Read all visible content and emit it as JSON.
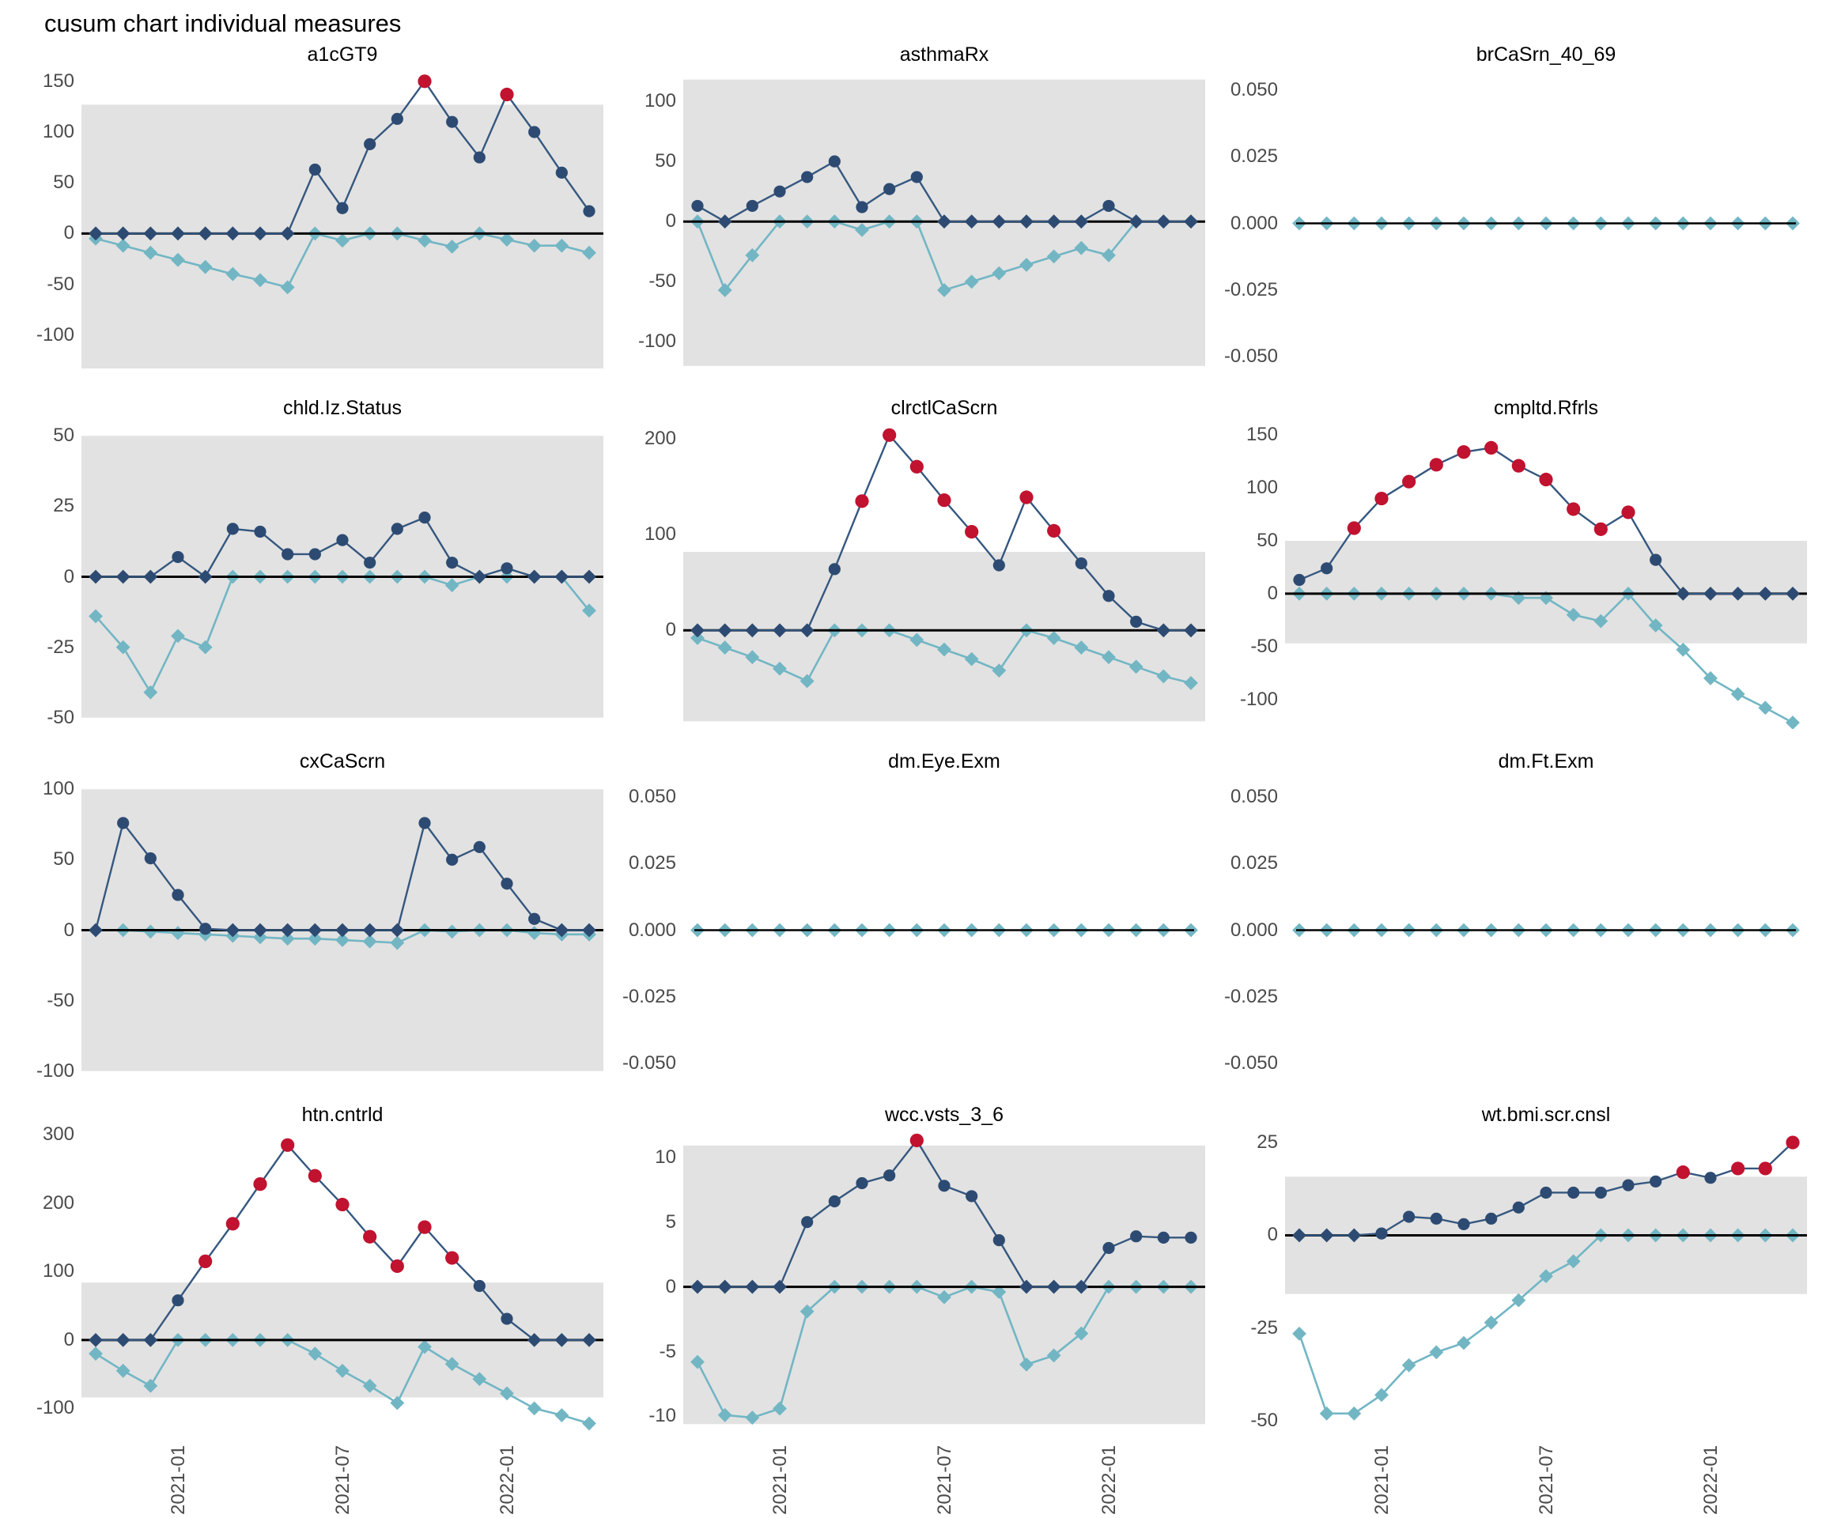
{
  "page_title": "cusum chart  individual measures",
  "colors": {
    "upper_point": "#2d4b72",
    "upper_line": "#35577f",
    "lower": "#72b6c4",
    "signal_red": "#c1122f",
    "band_gray": "#e2e2e2",
    "zero_line": "#000000",
    "axis_text": "#4a4a4a",
    "title_text": "#000000"
  },
  "x_axis": {
    "n_points": 19,
    "tick_labels": [
      "2021-01",
      "2021-07",
      "2022-01"
    ],
    "tick_indices": [
      3,
      9,
      15
    ]
  },
  "chart_data": [
    {
      "type": "line",
      "title": "a1cGT9",
      "yticks": {
        "labels": [
          "150",
          "100",
          "50",
          "0",
          "-50",
          "-100"
        ],
        "values": [
          150,
          100,
          50,
          0,
          -50,
          -100
        ]
      },
      "ylim": [
        -140,
        160
      ],
      "band": [
        -133,
        127
      ],
      "series": [
        {
          "name": "cusum-upper",
          "values": [
            0,
            0,
            0,
            0,
            0,
            0,
            0,
            0,
            63,
            25,
            88,
            113,
            150,
            110,
            75,
            137,
            100,
            60,
            22
          ]
        },
        {
          "name": "cusum-lower",
          "values": [
            -5,
            -12,
            -19,
            -26,
            -33,
            -40,
            -46,
            -53,
            0,
            -7,
            0,
            0,
            -7,
            -13,
            0,
            -6,
            -12,
            -12,
            -19
          ]
        }
      ]
    },
    {
      "type": "line",
      "title": "asthmaRx",
      "yticks": {
        "labels": [
          "100",
          "50",
          "0",
          "-50",
          "-100"
        ],
        "values": [
          100,
          50,
          0,
          -50,
          -100
        ]
      },
      "ylim": [
        -128,
        125
      ],
      "band": [
        -120,
        118
      ],
      "series": [
        {
          "name": "cusum-upper",
          "values": [
            13,
            0,
            13,
            25,
            37,
            50,
            12,
            27,
            37,
            0,
            0,
            0,
            0,
            0,
            0,
            13,
            0,
            0,
            0
          ]
        },
        {
          "name": "cusum-lower",
          "values": [
            0,
            -57,
            -28,
            0,
            0,
            0,
            -7,
            0,
            0,
            -57,
            -50,
            -43,
            -36,
            -29,
            -22,
            -28,
            0,
            0,
            0
          ]
        }
      ]
    },
    {
      "type": "line",
      "title": "brCaSrn_40_69",
      "yticks": {
        "labels": [
          "0.050",
          "0.025",
          "0.000",
          "-0.025",
          "-0.050"
        ],
        "values": [
          0.05,
          0.025,
          0.0,
          -0.025,
          -0.05
        ]
      },
      "ylim": [
        -0.057,
        0.057
      ],
      "band": null,
      "series": [
        {
          "name": "cusum-upper",
          "values": [
            0,
            0,
            0,
            0,
            0,
            0,
            0,
            0,
            0,
            0,
            0,
            0,
            0,
            0,
            0,
            0,
            0,
            0,
            0
          ]
        },
        {
          "name": "cusum-lower",
          "values": [
            0,
            0,
            0,
            0,
            0,
            0,
            0,
            0,
            0,
            0,
            0,
            0,
            0,
            0,
            0,
            0,
            0,
            0,
            0
          ]
        }
      ]
    },
    {
      "type": "line",
      "title": "chld.Iz.Status",
      "yticks": {
        "labels": [
          "50",
          "25",
          "0",
          "-25",
          "-50"
        ],
        "values": [
          50,
          25,
          0,
          -25,
          -50
        ]
      },
      "ylim": [
        -54,
        54
      ],
      "band": [
        -50,
        50
      ],
      "series": [
        {
          "name": "cusum-upper",
          "values": [
            0,
            0,
            0,
            7,
            0,
            17,
            16,
            8,
            8,
            13,
            5,
            17,
            21,
            5,
            0,
            3,
            0,
            0,
            0
          ]
        },
        {
          "name": "cusum-lower",
          "values": [
            -14,
            -25,
            -41,
            -21,
            -25,
            0,
            0,
            0,
            0,
            0,
            0,
            0,
            0,
            -3,
            0,
            0,
            0,
            0,
            -12
          ]
        }
      ]
    },
    {
      "type": "line",
      "title": "clrctlCaScrn",
      "yticks": {
        "labels": [
          "200",
          "100",
          "0"
        ],
        "values": [
          200,
          100,
          0
        ]
      },
      "ylim": [
        -103,
        215
      ],
      "band": [
        -95,
        82
      ],
      "series": [
        {
          "name": "cusum-upper",
          "values": [
            0,
            0,
            0,
            0,
            0,
            64,
            135,
            204,
            171,
            136,
            103,
            68,
            139,
            104,
            70,
            36,
            9,
            0,
            0
          ]
        },
        {
          "name": "cusum-lower",
          "values": [
            -8,
            -18,
            -28,
            -40,
            -53,
            0,
            0,
            0,
            -10,
            -20,
            -30,
            -42,
            0,
            -8,
            -18,
            -28,
            -38,
            -48,
            -55
          ]
        }
      ]
    },
    {
      "type": "line",
      "title": "cmpltd.Rfrls",
      "yticks": {
        "labels": [
          "150",
          "100",
          "50",
          "0",
          "-50",
          "-100"
        ],
        "values": [
          150,
          100,
          50,
          0,
          -50,
          -100
        ]
      },
      "ylim": [
        -128,
        160
      ],
      "band": [
        -47,
        50
      ],
      "series": [
        {
          "name": "cusum-upper",
          "values": [
            13,
            24,
            62,
            90,
            106,
            122,
            134,
            138,
            121,
            108,
            80,
            61,
            77,
            32,
            0,
            0,
            0,
            0,
            0
          ]
        },
        {
          "name": "cusum-lower",
          "values": [
            0,
            0,
            0,
            0,
            0,
            0,
            0,
            0,
            -4,
            -4,
            -20,
            -26,
            0,
            -30,
            -53,
            -80,
            -95,
            -108,
            -122
          ]
        }
      ]
    },
    {
      "type": "line",
      "title": "cxCaScrn",
      "yticks": {
        "labels": [
          "100",
          "50",
          "0",
          "-50",
          "-100"
        ],
        "values": [
          100,
          50,
          0,
          -50,
          -100
        ]
      },
      "ylim": [
        -108,
        108
      ],
      "band": [
        -100,
        100
      ],
      "series": [
        {
          "name": "cusum-upper",
          "values": [
            0,
            76,
            51,
            25,
            1,
            0,
            0,
            0,
            0,
            0,
            0,
            0,
            76,
            50,
            59,
            33,
            8,
            0,
            0
          ]
        },
        {
          "name": "cusum-lower",
          "values": [
            0,
            0,
            -1,
            -2,
            -3,
            -4,
            -5,
            -6,
            -6,
            -7,
            -8,
            -9,
            0,
            -1,
            0,
            0,
            -2,
            -3,
            -3
          ]
        }
      ]
    },
    {
      "type": "line",
      "title": "dm.Eye.Exm",
      "yticks": {
        "labels": [
          "0.050",
          "0.025",
          "0.000",
          "-0.025",
          "-0.050"
        ],
        "values": [
          0.05,
          0.025,
          0.0,
          -0.025,
          -0.05
        ]
      },
      "ylim": [
        -0.057,
        0.057
      ],
      "band": null,
      "series": [
        {
          "name": "cusum-upper",
          "values": [
            0,
            0,
            0,
            0,
            0,
            0,
            0,
            0,
            0,
            0,
            0,
            0,
            0,
            0,
            0,
            0,
            0,
            0,
            0
          ]
        },
        {
          "name": "cusum-lower",
          "values": [
            0,
            0,
            0,
            0,
            0,
            0,
            0,
            0,
            0,
            0,
            0,
            0,
            0,
            0,
            0,
            0,
            0,
            0,
            0
          ]
        }
      ]
    },
    {
      "type": "line",
      "title": "dm.Ft.Exm",
      "yticks": {
        "labels": [
          "0.050",
          "0.025",
          "0.000",
          "-0.025",
          "-0.050"
        ],
        "values": [
          0.05,
          0.025,
          0.0,
          -0.025,
          -0.05
        ]
      },
      "ylim": [
        -0.057,
        0.057
      ],
      "band": null,
      "series": [
        {
          "name": "cusum-upper",
          "values": [
            0,
            0,
            0,
            0,
            0,
            0,
            0,
            0,
            0,
            0,
            0,
            0,
            0,
            0,
            0,
            0,
            0,
            0,
            0
          ]
        },
        {
          "name": "cusum-lower",
          "values": [
            0,
            0,
            0,
            0,
            0,
            0,
            0,
            0,
            0,
            0,
            0,
            0,
            0,
            0,
            0,
            0,
            0,
            0,
            0
          ]
        }
      ]
    },
    {
      "type": "line",
      "title": "htn.cntrld",
      "yticks": {
        "labels": [
          "300",
          "200",
          "100",
          "0",
          "-100"
        ],
        "values": [
          300,
          200,
          100,
          0,
          -100
        ]
      },
      "ylim": [
        -140,
        305
      ],
      "band": [
        -84,
        84
      ],
      "series": [
        {
          "name": "cusum-upper",
          "values": [
            0,
            0,
            0,
            58,
            115,
            170,
            228,
            285,
            240,
            198,
            151,
            108,
            165,
            120,
            79,
            31,
            0,
            0,
            0
          ]
        },
        {
          "name": "cusum-lower",
          "values": [
            -20,
            -45,
            -67,
            0,
            0,
            0,
            0,
            0,
            -20,
            -45,
            -67,
            -92,
            -10,
            -35,
            -57,
            -78,
            -100,
            -110,
            -122
          ]
        }
      ]
    },
    {
      "type": "line",
      "title": "wcc.vsts_3_6",
      "yticks": {
        "labels": [
          "10",
          "5",
          "0",
          "-5",
          "-10"
        ],
        "values": [
          10,
          5,
          0,
          -5,
          -10
        ]
      },
      "ylim": [
        -11.5,
        12
      ],
      "band": [
        -10.6,
        10.9
      ],
      "series": [
        {
          "name": "cusum-upper",
          "values": [
            0,
            0,
            0,
            0,
            5,
            6.6,
            8,
            8.6,
            11.3,
            7.8,
            7,
            3.6,
            0,
            0,
            0,
            3,
            3.9,
            3.8,
            3.8
          ]
        },
        {
          "name": "cusum-lower",
          "values": [
            -5.8,
            -9.9,
            -10.1,
            -9.4,
            -1.9,
            0,
            0,
            0,
            0,
            -0.8,
            0,
            -0.4,
            -6,
            -5.3,
            -3.6,
            0,
            0,
            0,
            0
          ]
        }
      ]
    },
    {
      "type": "line",
      "title": "wt.bmi.scr.cnsl",
      "yticks": {
        "labels": [
          "25",
          "0",
          "-25",
          "-50"
        ],
        "values": [
          25,
          0,
          -25,
          -50
        ]
      },
      "ylim": [
        -54,
        28
      ],
      "band": [
        -15.8,
        15.8
      ],
      "series": [
        {
          "name": "cusum-upper",
          "values": [
            0,
            0,
            0,
            0.5,
            5,
            4.5,
            3,
            4.5,
            7.5,
            11.5,
            11.5,
            11.5,
            13.5,
            14.5,
            17,
            15.5,
            18,
            18,
            25
          ]
        },
        {
          "name": "cusum-lower",
          "values": [
            -26.5,
            -48,
            -48,
            -43,
            -35,
            -31.5,
            -29,
            -23.5,
            -17.5,
            -11,
            -7,
            0,
            0,
            0,
            0,
            0,
            0,
            0,
            0
          ]
        }
      ]
    }
  ]
}
